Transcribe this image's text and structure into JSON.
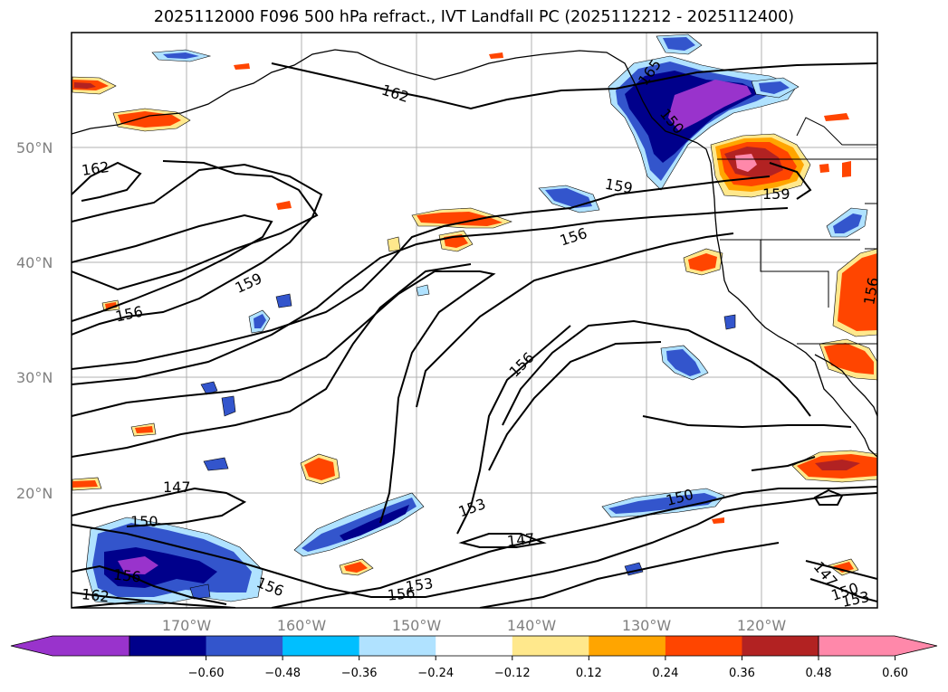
{
  "title": "2025112000 F096 500 hPa refract., IVT Landfall PC (2025112212 - 2025112400)",
  "map": {
    "lat_labels": [
      "50°N",
      "40°N",
      "30°N",
      "20°N"
    ],
    "lon_labels": [
      "170°W",
      "160°W",
      "150°W",
      "140°W",
      "130°W",
      "120°W"
    ],
    "grid": true,
    "contour_labels": [
      "162",
      "162",
      "159",
      "156",
      "159",
      "156",
      "156",
      "165",
      "150",
      "159",
      "156",
      "147",
      "150",
      "153",
      "147",
      "150",
      "162",
      "156",
      "153",
      "156",
      "147",
      "150",
      "153",
      "156"
    ]
  },
  "colorbar": {
    "tick_labels": [
      "−0.60",
      "−0.48",
      "−0.36",
      "−0.24",
      "−0.12",
      "0.12",
      "0.24",
      "0.36",
      "0.48",
      "0.60"
    ],
    "colors": [
      "#9933cc",
      "#00008b",
      "#3355cc",
      "#00bfff",
      "#b0e2ff",
      "#ffffff",
      "#ffe88c",
      "#ffa500",
      "#ff4500",
      "#b22222",
      "#ff88aa"
    ]
  }
}
